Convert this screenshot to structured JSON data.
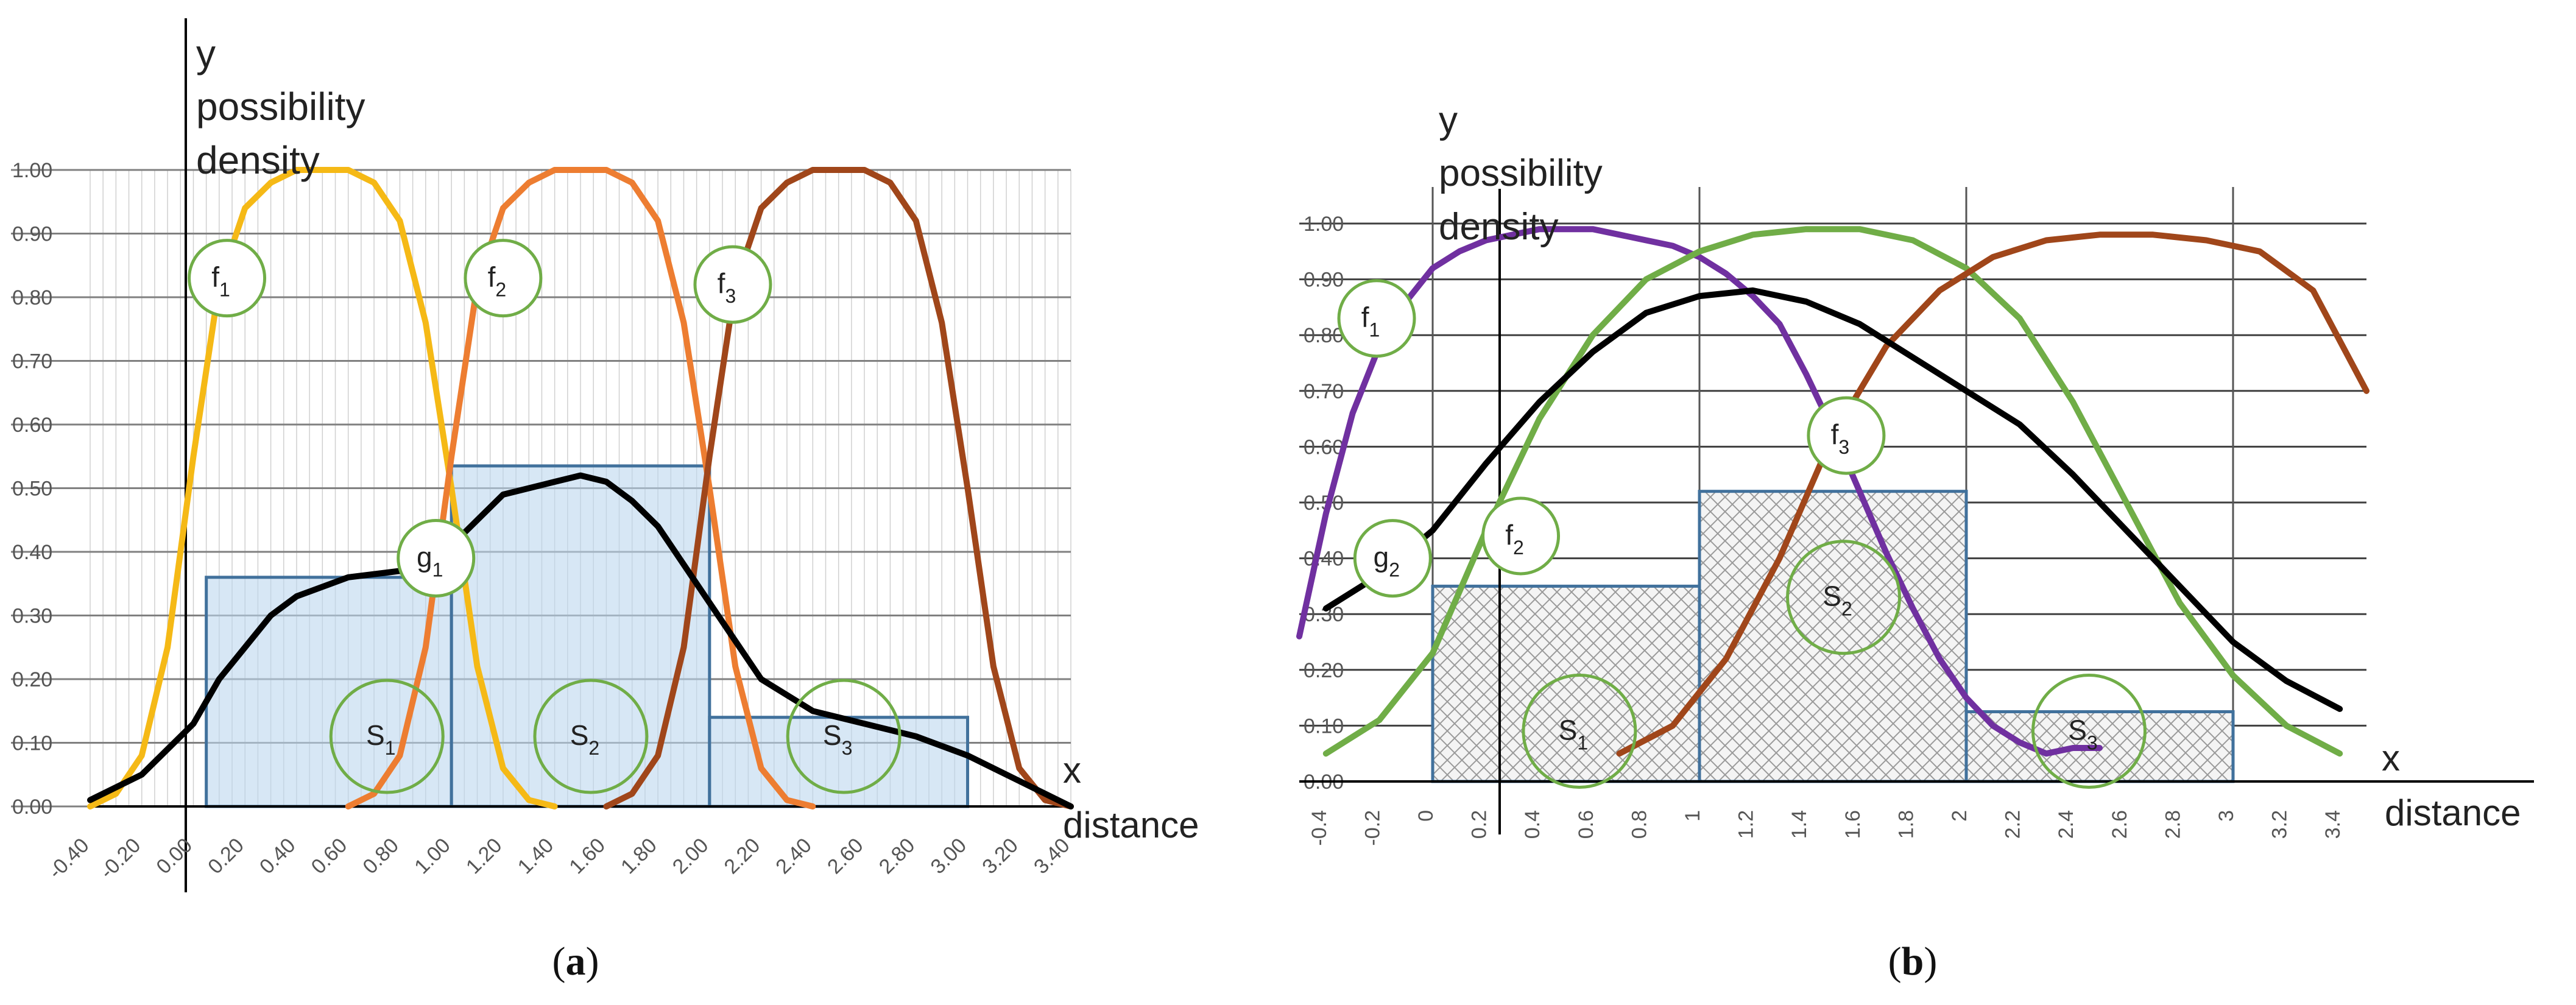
{
  "chart_data": [
    {
      "panel": "a",
      "caption": "(a)",
      "type": "line",
      "ylabel": [
        "y",
        "possibility",
        "density"
      ],
      "xlabel_short": "x",
      "xlabel": "distance",
      "xlim": [
        -0.4,
        3.4
      ],
      "ylim": [
        0,
        1
      ],
      "x_ticks": [
        "-0.40",
        "-0.20",
        "0.00",
        "0.20",
        "0.40",
        "0.60",
        "0.80",
        "1.00",
        "1.20",
        "1.40",
        "1.60",
        "1.80",
        "2.00",
        "2.20",
        "2.40",
        "2.60",
        "2.80",
        "3.00",
        "3.20",
        "3.40"
      ],
      "y_ticks": [
        "0.00",
        "0.10",
        "0.20",
        "0.30",
        "0.40",
        "0.50",
        "0.60",
        "0.70",
        "0.80",
        "0.90",
        "1.00"
      ],
      "grid": true,
      "series": [
        {
          "label": "f1",
          "color": "#f5b916",
          "x": [
            -0.4,
            -0.3,
            -0.2,
            -0.1,
            0.0,
            0.1,
            0.2,
            0.3,
            0.4,
            0.5,
            0.6,
            0.7,
            0.8,
            0.9,
            1.0,
            1.1,
            1.2,
            1.3,
            1.4
          ],
          "y": [
            0.0,
            0.02,
            0.08,
            0.25,
            0.55,
            0.82,
            0.94,
            0.98,
            1.0,
            1.0,
            1.0,
            0.98,
            0.92,
            0.76,
            0.5,
            0.22,
            0.06,
            0.01,
            0.0
          ]
        },
        {
          "label": "f2",
          "color": "#ed7d31",
          "x": [
            0.6,
            0.7,
            0.8,
            0.9,
            1.0,
            1.1,
            1.2,
            1.3,
            1.4,
            1.5,
            1.6,
            1.7,
            1.8,
            1.9,
            2.0,
            2.1,
            2.2,
            2.3,
            2.4
          ],
          "y": [
            0.0,
            0.02,
            0.08,
            0.25,
            0.55,
            0.82,
            0.94,
            0.98,
            1.0,
            1.0,
            1.0,
            0.98,
            0.92,
            0.76,
            0.5,
            0.22,
            0.06,
            0.01,
            0.0
          ]
        },
        {
          "label": "f3",
          "color": "#a0461a",
          "x": [
            1.6,
            1.7,
            1.8,
            1.9,
            2.0,
            2.1,
            2.2,
            2.3,
            2.4,
            2.5,
            2.6,
            2.7,
            2.8,
            2.9,
            3.0,
            3.1,
            3.2,
            3.3,
            3.4
          ],
          "y": [
            0.0,
            0.02,
            0.08,
            0.25,
            0.55,
            0.82,
            0.94,
            0.98,
            1.0,
            1.0,
            1.0,
            0.98,
            0.92,
            0.76,
            0.5,
            0.22,
            0.06,
            0.01,
            0.0
          ]
        },
        {
          "label": "g1",
          "color": "#000000",
          "x": [
            -0.4,
            -0.2,
            0.0,
            0.1,
            0.2,
            0.3,
            0.4,
            0.6,
            0.8,
            1.0,
            1.1,
            1.2,
            1.4,
            1.5,
            1.6,
            1.7,
            1.8,
            1.9,
            2.0,
            2.1,
            2.2,
            2.4,
            2.6,
            2.8,
            3.0,
            3.2,
            3.4
          ],
          "y": [
            0.01,
            0.05,
            0.13,
            0.2,
            0.25,
            0.3,
            0.33,
            0.36,
            0.37,
            0.41,
            0.45,
            0.49,
            0.51,
            0.52,
            0.51,
            0.48,
            0.44,
            0.38,
            0.32,
            0.26,
            0.2,
            0.15,
            0.13,
            0.11,
            0.08,
            0.04,
            0.0
          ]
        }
      ],
      "rects": [
        {
          "label": "S1",
          "x0": 0.05,
          "x1": 1.0,
          "height": 0.36
        },
        {
          "label": "S2",
          "x0": 1.0,
          "x1": 2.0,
          "height": 0.535
        },
        {
          "label": "S3",
          "x0": 2.0,
          "x1": 3.0,
          "height": 0.14
        }
      ],
      "bubbles": [
        {
          "main": "f",
          "sub": "1",
          "x": 0.13,
          "y": 0.83
        },
        {
          "main": "f",
          "sub": "2",
          "x": 1.2,
          "y": 0.83
        },
        {
          "main": "f",
          "sub": "3",
          "x": 2.09,
          "y": 0.82
        },
        {
          "main": "g",
          "sub": "1",
          "x": 0.94,
          "y": 0.39
        },
        {
          "main": "S",
          "sub": "1",
          "x": 0.75,
          "y": 0.11
        },
        {
          "main": "S",
          "sub": "2",
          "x": 1.54,
          "y": 0.11
        },
        {
          "main": "S",
          "sub": "3",
          "x": 2.52,
          "y": 0.11
        }
      ]
    },
    {
      "panel": "b",
      "caption": "(b)",
      "type": "line",
      "ylabel": [
        "y",
        "possibility",
        "density"
      ],
      "xlabel_short": "x",
      "xlabel": "distance",
      "xlim": [
        -0.5,
        3.5
      ],
      "ylim": [
        0,
        1
      ],
      "x_ticks": [
        "-0.4",
        "-0.2",
        "0",
        "0.2",
        "0.4",
        "0.6",
        "0.8",
        "1",
        "1.2",
        "1.4",
        "1.6",
        "1.8",
        "2",
        "2.2",
        "2.4",
        "2.6",
        "2.8",
        "3",
        "3.2",
        "3.4"
      ],
      "y_ticks": [
        "0.00",
        "0.10",
        "0.20",
        "0.30",
        "0.40",
        "0.50",
        "0.60",
        "0.70",
        "0.80",
        "0.90",
        "1.00"
      ],
      "grid": true,
      "series": [
        {
          "label": "f1",
          "color": "#7030a0",
          "x": [
            -0.5,
            -0.4,
            -0.3,
            -0.2,
            -0.1,
            0.0,
            0.1,
            0.2,
            0.3,
            0.4,
            0.5,
            0.6,
            0.7,
            0.8,
            0.9,
            1.0,
            1.1,
            1.2,
            1.3,
            1.4,
            1.5,
            1.6,
            1.7,
            1.8,
            1.9,
            2.0,
            2.1,
            2.2,
            2.3,
            2.4,
            2.5
          ],
          "y": [
            0.26,
            0.48,
            0.66,
            0.78,
            0.86,
            0.92,
            0.95,
            0.97,
            0.98,
            0.99,
            0.99,
            0.99,
            0.98,
            0.97,
            0.96,
            0.94,
            0.91,
            0.87,
            0.82,
            0.73,
            0.63,
            0.52,
            0.41,
            0.31,
            0.22,
            0.15,
            0.1,
            0.07,
            0.05,
            0.06,
            0.06
          ]
        },
        {
          "label": "f2",
          "color": "#70ad47",
          "x": [
            -0.4,
            -0.2,
            0.0,
            0.2,
            0.4,
            0.6,
            0.8,
            1.0,
            1.2,
            1.4,
            1.6,
            1.8,
            2.0,
            2.2,
            2.4,
            2.6,
            2.8,
            3.0,
            3.2,
            3.4
          ],
          "y": [
            0.05,
            0.11,
            0.23,
            0.45,
            0.65,
            0.8,
            0.9,
            0.95,
            0.98,
            0.99,
            0.99,
            0.97,
            0.92,
            0.83,
            0.68,
            0.5,
            0.32,
            0.19,
            0.1,
            0.05
          ]
        },
        {
          "label": "f3",
          "color": "#a0461a",
          "x": [
            0.7,
            0.9,
            1.1,
            1.3,
            1.5,
            1.7,
            1.9,
            2.1,
            2.3,
            2.5,
            2.7,
            2.9,
            3.1,
            3.3,
            3.5
          ],
          "y": [
            0.05,
            0.1,
            0.22,
            0.4,
            0.62,
            0.78,
            0.88,
            0.94,
            0.97,
            0.98,
            0.98,
            0.97,
            0.95,
            0.88,
            0.7
          ]
        },
        {
          "label": "g2",
          "color": "#000000",
          "x": [
            -0.4,
            -0.2,
            0.0,
            0.2,
            0.4,
            0.6,
            0.8,
            1.0,
            1.2,
            1.4,
            1.6,
            1.8,
            2.0,
            2.2,
            2.4,
            2.6,
            2.8,
            3.0,
            3.2,
            3.4
          ],
          "y": [
            0.31,
            0.37,
            0.45,
            0.57,
            0.68,
            0.77,
            0.84,
            0.87,
            0.88,
            0.86,
            0.82,
            0.76,
            0.7,
            0.64,
            0.55,
            0.45,
            0.35,
            0.25,
            0.18,
            0.13
          ]
        }
      ],
      "rects": [
        {
          "label": "S1",
          "x0": 0.0,
          "x1": 1.0,
          "height": 0.35
        },
        {
          "label": "S2",
          "x0": 1.0,
          "x1": 2.0,
          "height": 0.52
        },
        {
          "label": "S3",
          "x0": 2.0,
          "x1": 3.0,
          "height": 0.125
        }
      ],
      "bubbles": [
        {
          "main": "f",
          "sub": "1",
          "x": -0.21,
          "y": 0.83
        },
        {
          "main": "f",
          "sub": "2",
          "x": 0.33,
          "y": 0.44
        },
        {
          "main": "f",
          "sub": "3",
          "x": 1.55,
          "y": 0.62
        },
        {
          "main": "g",
          "sub": "2",
          "x": -0.15,
          "y": 0.4
        },
        {
          "main": "S",
          "sub": "1",
          "x": 0.55,
          "y": 0.09
        },
        {
          "main": "S",
          "sub": "2",
          "x": 1.54,
          "y": 0.33
        },
        {
          "main": "S",
          "sub": "3",
          "x": 2.46,
          "y": 0.09
        }
      ]
    }
  ]
}
